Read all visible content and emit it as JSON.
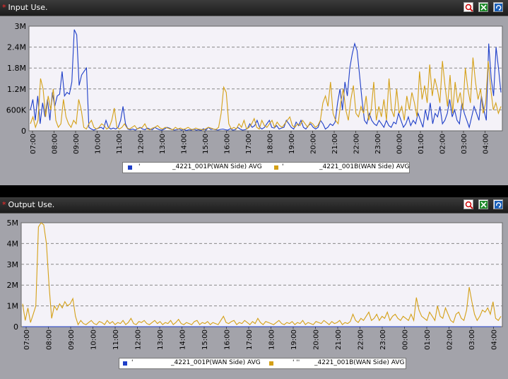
{
  "colors": {
    "series_blue": "#1f3fc8",
    "series_orange": "#d4a017",
    "header_bg": "#262626",
    "panel_bg": "#a3a3aa",
    "plot_bg": "#f4f2f8",
    "title_star": "#ff2a2a"
  },
  "panels": [
    {
      "title": "Input Use.",
      "buttons": [
        "zoom-icon",
        "export-excel-icon",
        "refresh-icon"
      ],
      "legend": [
        {
          "swatch": "#1f3fc8",
          "prefix": "'",
          "label": "_4221_001P(WAN Side) AVG"
        },
        {
          "swatch": "#d4a017",
          "prefix": "'",
          "label": "_4221_001B(WAN Side) AVG"
        }
      ]
    },
    {
      "title": "Output Use.",
      "buttons": [
        "zoom-icon",
        "export-excel-icon",
        "refresh-icon"
      ],
      "legend": [
        {
          "swatch": "#1f3fc8",
          "prefix": "'",
          "label": "_4221_001P(WAN Side) AVG"
        },
        {
          "swatch": "#d4a017",
          "prefix": "' ''",
          "label": "_4221_001B(WAN Side) AVG"
        }
      ]
    }
  ],
  "chart_data": [
    {
      "type": "line",
      "title": "Input Use.",
      "y_ticks": [
        "0",
        "600K",
        "1.2M",
        "1.8M",
        "2.4M",
        "3M"
      ],
      "ylim": [
        0,
        3000000
      ],
      "x_ticks": [
        "07:00",
        "08:00",
        "09:00",
        "10:00",
        "11:00",
        "12:00",
        "13:00",
        "14:00",
        "15:00",
        "16:00",
        "17:00",
        "18:00",
        "19:00",
        "20:00",
        "21:00",
        "22:00",
        "23:00",
        "00:00",
        "01:00",
        "02:00",
        "03:00",
        "04:00"
      ],
      "grid": true,
      "legend_position": "bottom",
      "series": [
        {
          "name": "_4221_001P(WAN Side) AVG",
          "color": "#1f3fc8",
          "values": [
            600000,
            900000,
            300000,
            1000000,
            200000,
            800000,
            400000,
            900000,
            300000,
            1100000,
            700000,
            1000000,
            1050000,
            1700000,
            1000000,
            1100000,
            1050000,
            1400000,
            2900000,
            2750000,
            1300000,
            1600000,
            1700000,
            1800000,
            100000,
            50000,
            20000,
            50000,
            80000,
            100000,
            50000,
            300000,
            100000,
            50000,
            80000,
            50000,
            100000,
            300000,
            700000,
            200000,
            50000,
            30000,
            50000,
            20000,
            60000,
            100000,
            50000,
            30000,
            80000,
            50000,
            30000,
            100000,
            60000,
            30000,
            20000,
            50000,
            100000,
            80000,
            40000,
            20000,
            30000,
            50000,
            20000,
            40000,
            10000,
            30000,
            20000,
            50000,
            20000,
            30000,
            10000,
            60000,
            20000,
            100000,
            40000,
            50000,
            30000,
            20000,
            40000,
            50000,
            30000,
            20000,
            60000,
            20000,
            30000,
            100000,
            50000,
            20000,
            30000,
            60000,
            200000,
            100000,
            150000,
            300000,
            100000,
            50000,
            100000,
            200000,
            300000,
            100000,
            80000,
            150000,
            50000,
            80000,
            100000,
            300000,
            200000,
            100000,
            50000,
            250000,
            150000,
            300000,
            100000,
            50000,
            150000,
            200000,
            100000,
            50000,
            100000,
            300000,
            200000,
            50000,
            100000,
            200000,
            150000,
            250000,
            800000,
            1200000,
            600000,
            1400000,
            1000000,
            1800000,
            2200000,
            2500000,
            2300000,
            1600000,
            900000,
            300000,
            200000,
            500000,
            300000,
            200000,
            150000,
            300000,
            200000,
            100000,
            300000,
            150000,
            100000,
            250000,
            200000,
            500000,
            300000,
            100000,
            200000,
            400000,
            150000,
            300000,
            200000,
            500000,
            300000,
            100000,
            600000,
            300000,
            800000,
            200000,
            500000,
            400000,
            700000,
            200000,
            300000,
            500000,
            900000,
            400000,
            600000,
            300000,
            200000,
            800000,
            500000,
            300000,
            100000,
            400000,
            700000,
            500000,
            300000,
            1000000,
            600000,
            300000,
            2500000,
            1500000,
            1000000,
            2400000,
            1800000,
            1100000
          ]
        },
        {
          "name": "_4221_001B(WAN Side) AVG",
          "color": "#d4a017",
          "values": [
            200000,
            400000,
            100000,
            300000,
            1500000,
            1200000,
            400000,
            1000000,
            600000,
            1200000,
            300000,
            100000,
            200000,
            900000,
            400000,
            200000,
            100000,
            300000,
            200000,
            900000,
            600000,
            100000,
            50000,
            200000,
            300000,
            100000,
            50000,
            100000,
            200000,
            150000,
            50000,
            100000,
            300000,
            650000,
            100000,
            50000,
            100000,
            200000,
            80000,
            50000,
            100000,
            150000,
            50000,
            80000,
            100000,
            200000,
            50000,
            30000,
            80000,
            100000,
            150000,
            80000,
            50000,
            100000,
            80000,
            50000,
            30000,
            100000,
            50000,
            80000,
            40000,
            60000,
            100000,
            50000,
            30000,
            80000,
            50000,
            40000,
            30000,
            60000,
            100000,
            80000,
            50000,
            40000,
            100000,
            500000,
            1250000,
            1100000,
            200000,
            50000,
            100000,
            50000,
            200000,
            100000,
            300000,
            50000,
            100000,
            200000,
            350000,
            100000,
            50000,
            300000,
            150000,
            100000,
            200000,
            300000,
            100000,
            250000,
            150000,
            100000,
            200000,
            300000,
            400000,
            150000,
            100000,
            200000,
            150000,
            300000,
            200000,
            100000,
            250000,
            200000,
            100000,
            150000,
            300000,
            800000,
            1000000,
            700000,
            1400000,
            500000,
            300000,
            200000,
            800000,
            1200000,
            600000,
            300000,
            900000,
            1300000,
            500000,
            400000,
            700000,
            500000,
            1000000,
            300000,
            600000,
            1400000,
            300000,
            700000,
            400000,
            900000,
            300000,
            1500000,
            600000,
            400000,
            1200000,
            500000,
            700000,
            300000,
            1000000,
            600000,
            1100000,
            800000,
            400000,
            1700000,
            900000,
            1300000,
            800000,
            1900000,
            1000000,
            1500000,
            1200000,
            800000,
            2000000,
            1300000,
            700000,
            1600000,
            500000,
            1400000,
            800000,
            1100000,
            600000,
            1800000,
            1200000,
            800000,
            2100000,
            1400000,
            900000,
            1200000,
            500000,
            800000,
            2000000,
            1200000,
            600000,
            800000,
            500000,
            700000
          ]
        }
      ]
    },
    {
      "type": "line",
      "title": "Output Use.",
      "y_ticks": [
        "0",
        "1M",
        "2M",
        "3M",
        "4M",
        "5M"
      ],
      "ylim": [
        0,
        5000000
      ],
      "x_ticks": [
        "07:00",
        "08:00",
        "09:00",
        "10:00",
        "11:00",
        "12:00",
        "13:00",
        "14:00",
        "15:00",
        "16:00",
        "17:00",
        "18:00",
        "19:00",
        "20:00",
        "21:00",
        "22:00",
        "23:00",
        "00:00",
        "01:00",
        "02:00",
        "03:00",
        "04:00"
      ],
      "grid": true,
      "legend_position": "bottom",
      "series": [
        {
          "name": "_4221_001P(WAN Side) AVG",
          "color": "#1f3fc8",
          "values": [
            0,
            0,
            0,
            0,
            0,
            0,
            0,
            0,
            0,
            0,
            0,
            0,
            0,
            0,
            0,
            0,
            0,
            0,
            0,
            0,
            0,
            0,
            0,
            0,
            0,
            0,
            0,
            0,
            0,
            0,
            0,
            0,
            0,
            0,
            0,
            0,
            0,
            0,
            0,
            0,
            0,
            0,
            0,
            0,
            0,
            0,
            0,
            0,
            0,
            0,
            0,
            0,
            0,
            0,
            0,
            0,
            0,
            0,
            0,
            0,
            0,
            0,
            0,
            0,
            0,
            0,
            0,
            0,
            0,
            0,
            0,
            0,
            0,
            0,
            0,
            0,
            0,
            0,
            0,
            0,
            0,
            0,
            0,
            0,
            0,
            0,
            0,
            0,
            0,
            0,
            0,
            0,
            0,
            0,
            0,
            0,
            0,
            0,
            0,
            0,
            0,
            0,
            0,
            0,
            0,
            0,
            0,
            0,
            0,
            0,
            0,
            0,
            0,
            0,
            0,
            0,
            0,
            0,
            0,
            0,
            0,
            0,
            0,
            0,
            0,
            0,
            0,
            0,
            0,
            0,
            0,
            0,
            0,
            0,
            0,
            0,
            0,
            0,
            0,
            0,
            0,
            0,
            0,
            0,
            0,
            0,
            0,
            0,
            0,
            0,
            0,
            0,
            0,
            0,
            0,
            0,
            0,
            0,
            0,
            0,
            0,
            0,
            0,
            0,
            0,
            0,
            0,
            0,
            0,
            0,
            0,
            0,
            0,
            0,
            0,
            0,
            0,
            0,
            0,
            0,
            0,
            0,
            0,
            0,
            0,
            0,
            0,
            0,
            0,
            0,
            0,
            0,
            0,
            0,
            0,
            0,
            0,
            0,
            0,
            0
          ]
        },
        {
          "name": "_4221_001B(WAN Side) AVG",
          "color": "#d4a017",
          "values": [
            1100000,
            300000,
            900000,
            200000,
            600000,
            1000000,
            4800000,
            5000000,
            4900000,
            4000000,
            2000000,
            400000,
            1000000,
            800000,
            1100000,
            900000,
            1200000,
            1000000,
            1100000,
            1350000,
            500000,
            100000,
            300000,
            150000,
            100000,
            200000,
            300000,
            150000,
            100000,
            250000,
            200000,
            100000,
            300000,
            150000,
            250000,
            100000,
            200000,
            150000,
            300000,
            100000,
            200000,
            400000,
            150000,
            100000,
            250000,
            200000,
            300000,
            150000,
            100000,
            200000,
            300000,
            150000,
            250000,
            100000,
            200000,
            150000,
            300000,
            100000,
            200000,
            350000,
            150000,
            100000,
            200000,
            150000,
            100000,
            250000,
            300000,
            100000,
            200000,
            150000,
            250000,
            100000,
            200000,
            150000,
            100000,
            300000,
            500000,
            200000,
            150000,
            250000,
            300000,
            100000,
            200000,
            150000,
            300000,
            200000,
            100000,
            250000,
            150000,
            400000,
            200000,
            100000,
            250000,
            200000,
            150000,
            100000,
            200000,
            300000,
            150000,
            100000,
            200000,
            150000,
            250000,
            100000,
            200000,
            150000,
            300000,
            100000,
            200000,
            150000,
            100000,
            250000,
            200000,
            150000,
            300000,
            200000,
            100000,
            250000,
            150000,
            200000,
            300000,
            100000,
            200000,
            150000,
            250000,
            600000,
            300000,
            200000,
            400000,
            300000,
            500000,
            700000,
            300000,
            400000,
            600000,
            300000,
            500000,
            400000,
            700000,
            300000,
            500000,
            600000,
            400000,
            300000,
            500000,
            400000,
            300000,
            600000,
            300000,
            1400000,
            800000,
            500000,
            400000,
            300000,
            700000,
            500000,
            300000,
            1000000,
            500000,
            400000,
            900000,
            600000,
            300000,
            200000,
            600000,
            700000,
            400000,
            300000,
            800000,
            1900000,
            1200000,
            600000,
            300000,
            500000,
            800000,
            700000,
            900000,
            600000,
            1200000,
            400000,
            300000,
            500000
          ]
        }
      ]
    }
  ]
}
